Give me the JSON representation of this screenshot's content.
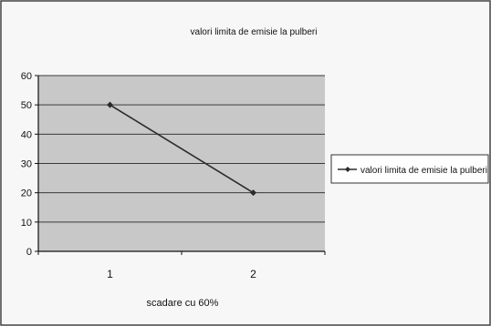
{
  "chart_data": {
    "type": "line",
    "title": "valori limita de emisie la pulberi",
    "xlabel": "scadare cu 60%",
    "ylabel": "",
    "categories": [
      "1",
      "2"
    ],
    "series": [
      {
        "name": "valori limita de emisie la pulberi",
        "values": [
          50,
          20
        ]
      }
    ],
    "ylim": [
      0,
      60
    ],
    "yticks": [
      "0",
      "10",
      "20",
      "30",
      "40",
      "50",
      "60"
    ],
    "grid": true,
    "legend": "right",
    "colors": {
      "plot_background": "#c8c8c8",
      "line": "#2b2b2b",
      "grid": "#3a3a3a"
    }
  }
}
